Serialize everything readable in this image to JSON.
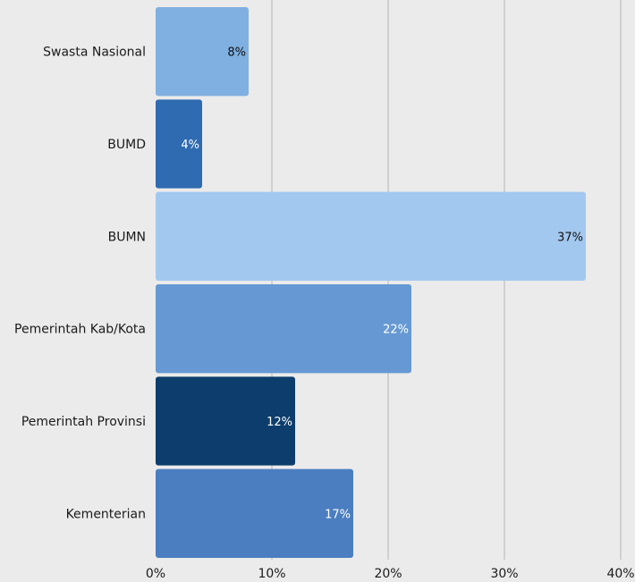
{
  "chart_data": {
    "type": "bar",
    "orientation": "horizontal",
    "title": "",
    "xlabel": "",
    "ylabel": "",
    "categories": [
      "Swasta Nasional",
      "BUMD",
      "BUMN",
      "Pemerintah Kab/Kota",
      "Pemerintah Provinsi",
      "Kementerian"
    ],
    "values": [
      8,
      4,
      37,
      22,
      12,
      17
    ],
    "value_labels": [
      "8%",
      "4%",
      "37%",
      "22%",
      "12%",
      "17%"
    ],
    "bar_colors": [
      "#7fb0e1",
      "#2f6bb1",
      "#a3c8ef",
      "#6699d3",
      "#0c3d6c",
      "#4a7ec0"
    ],
    "label_colors": [
      "#111111",
      "#ffffff",
      "#111111",
      "#ffffff",
      "#ffffff",
      "#ffffff"
    ],
    "xlim": [
      0,
      40
    ],
    "xticks": [
      0,
      10,
      20,
      30,
      40
    ],
    "xtick_labels": [
      "0%",
      "10%",
      "20%",
      "30%",
      "40%"
    ],
    "grid": true,
    "legend": "none"
  }
}
